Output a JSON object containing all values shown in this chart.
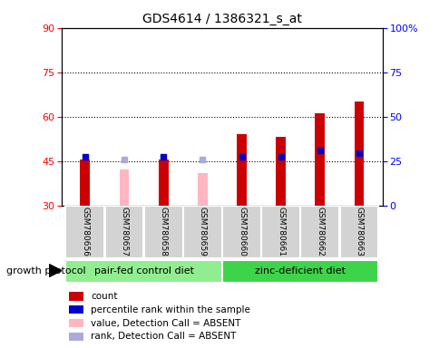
{
  "title": "GDS4614 / 1386321_s_at",
  "samples": [
    "GSM780656",
    "GSM780657",
    "GSM780658",
    "GSM780659",
    "GSM780660",
    "GSM780661",
    "GSM780662",
    "GSM780663"
  ],
  "count_values": [
    45.5,
    null,
    45.5,
    null,
    54,
    53,
    61,
    65
  ],
  "count_absent_values": [
    null,
    42,
    null,
    41,
    null,
    null,
    null,
    null
  ],
  "rank_values": [
    46.5,
    null,
    46.5,
    null,
    46.5,
    46.5,
    48.5,
    47.5
  ],
  "rank_absent_values": [
    null,
    45.5,
    null,
    45.5,
    null,
    null,
    null,
    null
  ],
  "ylim": [
    30,
    90
  ],
  "y2lim": [
    0,
    100
  ],
  "yticks": [
    30,
    45,
    60,
    75,
    90
  ],
  "y2ticks": [
    0,
    25,
    50,
    75,
    100
  ],
  "dotted_lines": [
    45,
    60,
    75
  ],
  "groups": [
    {
      "label": "pair-fed control diet",
      "color": "#90EE90",
      "indices": [
        0,
        1,
        2,
        3
      ]
    },
    {
      "label": "zinc-deficient diet",
      "color": "#3DD44A",
      "indices": [
        4,
        5,
        6,
        7
      ]
    }
  ],
  "group_label": "growth protocol",
  "bar_width": 0.25,
  "count_color": "#CC0000",
  "rank_color": "#0000CC",
  "count_absent_color": "#FFB6C1",
  "rank_absent_color": "#AAAADD",
  "base_value": 30,
  "legend_items": [
    {
      "label": "count",
      "color": "#CC0000"
    },
    {
      "label": "percentile rank within the sample",
      "color": "#0000CC"
    },
    {
      "label": "value, Detection Call = ABSENT",
      "color": "#FFB6C1"
    },
    {
      "label": "rank, Detection Call = ABSENT",
      "color": "#AAAADD"
    }
  ]
}
